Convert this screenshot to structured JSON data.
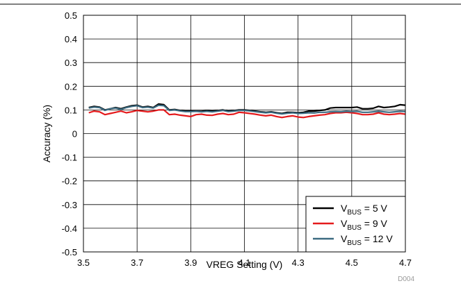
{
  "chart_data": {
    "type": "line",
    "xlabel": "VREG Setting (V)",
    "ylabel": "Accuracy (%)",
    "xlim": [
      3.5,
      4.7
    ],
    "ylim": [
      -0.5,
      0.5
    ],
    "x_ticks": [
      "3.5",
      "3.7",
      "3.9",
      "4.1",
      "4.3",
      "4.5",
      "4.7"
    ],
    "y_ticks": [
      "0.5",
      "0.4",
      "0.3",
      "0.2",
      "0.1",
      "0",
      "-0.1",
      "-0.2",
      "-0.3",
      "-0.4",
      "-0.5"
    ],
    "grid": true,
    "legend_position": "bottom-right",
    "footnote": "D004",
    "x": [
      3.52,
      3.54,
      3.56,
      3.58,
      3.6,
      3.62,
      3.64,
      3.66,
      3.68,
      3.7,
      3.72,
      3.74,
      3.76,
      3.78,
      3.8,
      3.82,
      3.84,
      3.86,
      3.88,
      3.9,
      3.92,
      3.94,
      3.96,
      3.98,
      4.0,
      4.02,
      4.04,
      4.06,
      4.08,
      4.1,
      4.12,
      4.14,
      4.16,
      4.18,
      4.2,
      4.22,
      4.24,
      4.26,
      4.28,
      4.3,
      4.32,
      4.34,
      4.36,
      4.38,
      4.4,
      4.42,
      4.44,
      4.46,
      4.48,
      4.5,
      4.52,
      4.54,
      4.56,
      4.58,
      4.6,
      4.62,
      4.64,
      4.66,
      4.68,
      4.7
    ],
    "series": [
      {
        "name_main": "V",
        "name_sub": "BUS",
        "name_rest": " = 5 V",
        "color": "#000000",
        "values": [
          0.11,
          0.115,
          0.112,
          0.1,
          0.105,
          0.11,
          0.105,
          0.112,
          0.118,
          0.12,
          0.112,
          0.115,
          0.11,
          0.125,
          0.122,
          0.1,
          0.102,
          0.098,
          0.095,
          0.095,
          0.095,
          0.094,
          0.097,
          0.095,
          0.097,
          0.1,
          0.095,
          0.097,
          0.1,
          0.1,
          0.098,
          0.095,
          0.092,
          0.09,
          0.092,
          0.088,
          0.085,
          0.09,
          0.09,
          0.088,
          0.09,
          0.095,
          0.095,
          0.098,
          0.1,
          0.108,
          0.11,
          0.11,
          0.11,
          0.11,
          0.112,
          0.105,
          0.105,
          0.107,
          0.115,
          0.11,
          0.112,
          0.115,
          0.122,
          0.12
        ]
      },
      {
        "name_main": "V",
        "name_sub": "BUS",
        "name_rest": " = 9 V",
        "color": "#e41a1c",
        "values": [
          0.088,
          0.095,
          0.092,
          0.08,
          0.085,
          0.09,
          0.095,
          0.088,
          0.092,
          0.098,
          0.095,
          0.092,
          0.095,
          0.1,
          0.1,
          0.08,
          0.082,
          0.078,
          0.075,
          0.072,
          0.08,
          0.082,
          0.078,
          0.077,
          0.082,
          0.085,
          0.08,
          0.082,
          0.09,
          0.088,
          0.085,
          0.082,
          0.078,
          0.075,
          0.078,
          0.072,
          0.068,
          0.072,
          0.075,
          0.07,
          0.068,
          0.072,
          0.075,
          0.078,
          0.08,
          0.085,
          0.088,
          0.088,
          0.09,
          0.088,
          0.085,
          0.08,
          0.08,
          0.082,
          0.088,
          0.082,
          0.08,
          0.082,
          0.085,
          0.082
        ]
      },
      {
        "name_main": "V",
        "name_sub": "BUS",
        "name_rest": " = 12 V",
        "color": "#3b6a80",
        "values": [
          0.108,
          0.112,
          0.11,
          0.098,
          0.105,
          0.108,
          0.102,
          0.11,
          0.115,
          0.118,
          0.11,
          0.112,
          0.108,
          0.12,
          0.118,
          0.098,
          0.1,
          0.096,
          0.093,
          0.093,
          0.094,
          0.092,
          0.094,
          0.092,
          0.095,
          0.098,
          0.093,
          0.095,
          0.098,
          0.098,
          0.096,
          0.093,
          0.09,
          0.088,
          0.09,
          0.086,
          0.083,
          0.086,
          0.088,
          0.085,
          0.086,
          0.088,
          0.087,
          0.09,
          0.09,
          0.092,
          0.093,
          0.092,
          0.094,
          0.093,
          0.094,
          0.09,
          0.09,
          0.092,
          0.094,
          0.092,
          0.09,
          0.092,
          0.094,
          0.093
        ]
      }
    ]
  }
}
